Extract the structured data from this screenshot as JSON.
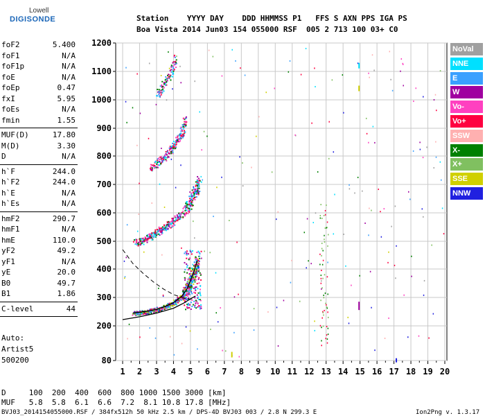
{
  "logo": {
    "top": "Lowell",
    "main": "DIGISONDE"
  },
  "header": {
    "line1": "Station    YYYY DAY    DDD HHMMSS P1   FFS S AXN PPS IGA PS",
    "line2": "Boa Vista 2014 Jun03 154 055000 RSF  005 2 713 100 03+ C0"
  },
  "params": [
    {
      "name": "foF2",
      "value": "5.400"
    },
    {
      "name": "foF1",
      "value": "N/A"
    },
    {
      "name": "foF1p",
      "value": "N/A"
    },
    {
      "name": "foE",
      "value": "N/A"
    },
    {
      "name": "foEp",
      "value": "0.47"
    },
    {
      "name": "fxI",
      "value": "5.95"
    },
    {
      "name": "foEs",
      "value": "N/A"
    },
    {
      "name": "fmin",
      "value": "1.55"
    },
    {
      "name": "MUF(D)",
      "value": "17.80"
    },
    {
      "name": "M(D)",
      "value": "3.30"
    },
    {
      "name": "D",
      "value": "N/A"
    },
    {
      "name": "h`F",
      "value": "244.0"
    },
    {
      "name": "h`F2",
      "value": "244.0"
    },
    {
      "name": "h`E",
      "value": "N/A"
    },
    {
      "name": "h`Es",
      "value": "N/A"
    },
    {
      "name": "hmF2",
      "value": "290.7"
    },
    {
      "name": "hmF1",
      "value": "N/A"
    },
    {
      "name": "hmE",
      "value": "110.0"
    },
    {
      "name": "yF2",
      "value": "49.2"
    },
    {
      "name": "yF1",
      "value": "N/A"
    },
    {
      "name": "yE",
      "value": "20.0"
    },
    {
      "name": "B0",
      "value": "49.7"
    },
    {
      "name": "B1",
      "value": "1.86"
    },
    {
      "name": "C-level",
      "value": "44"
    }
  ],
  "side_notes": {
    "auto": "Auto:",
    "artist": "Artist5",
    "version": "500200"
  },
  "legend": [
    {
      "label": "NoVal",
      "color": "#a0a0a0"
    },
    {
      "label": "NNE",
      "color": "#00e0ff"
    },
    {
      "label": "E",
      "color": "#3aa0ff"
    },
    {
      "label": "W",
      "color": "#a000a0"
    },
    {
      "label": "Vo-",
      "color": "#ff40c0"
    },
    {
      "label": "Vo+",
      "color": "#ff0040"
    },
    {
      "label": "SSW",
      "color": "#ffb0b0"
    },
    {
      "label": "X-",
      "color": "#008000"
    },
    {
      "label": "X+",
      "color": "#80c060"
    },
    {
      "label": "SSE",
      "color": "#d0d000"
    },
    {
      "label": "NNW",
      "color": "#2020e0"
    }
  ],
  "bottom": {
    "d_row": "D     100  200  400  600  800 1000 1500 3000 [km]",
    "muf_row": "MUF   5.8  5.8  6.1  6.6  7.2  8.1 10.8 17.8 [MHz]",
    "footer_left": "BVJ03_2014154055000.RSF / 384fx512h 50 kHz 2.5 km / DPS-4D BVJ03 003 / 2.8 N 299.3 E",
    "footer_right": "Ion2Png v. 1.3.17"
  },
  "chart_data": {
    "type": "scatter",
    "x_ticks": [
      "1",
      "2",
      "3",
      "4",
      "5",
      "6",
      "7",
      "8",
      "9",
      "10",
      "11",
      "12",
      "13",
      "14",
      "15",
      "16",
      "17",
      "18",
      "19",
      "20"
    ],
    "y_ticks": [
      "80",
      "200",
      "300",
      "400",
      "500",
      "600",
      "700",
      "800",
      "900",
      "1000",
      "1100",
      "1200"
    ],
    "xlim": [
      1,
      20
    ],
    "ylim": [
      80,
      1200
    ],
    "y_scale": "quasi-log",
    "grid": true,
    "traces": [
      {
        "name": "F trace (1st hop)",
        "points": [
          [
            1.6,
            245
          ],
          [
            2.0,
            248
          ],
          [
            2.5,
            252
          ],
          [
            3.0,
            258
          ],
          [
            3.5,
            268
          ],
          [
            4.0,
            282
          ],
          [
            4.5,
            305
          ],
          [
            4.8,
            330
          ],
          [
            5.0,
            360
          ],
          [
            5.2,
            390
          ],
          [
            5.4,
            430
          ]
        ]
      },
      {
        "name": "F trace (2nd hop)",
        "points": [
          [
            1.7,
            495
          ],
          [
            2.2,
            505
          ],
          [
            2.7,
            520
          ],
          [
            3.2,
            540
          ],
          [
            3.7,
            560
          ],
          [
            4.2,
            585
          ],
          [
            4.7,
            615
          ],
          [
            5.0,
            640
          ],
          [
            5.3,
            680
          ],
          [
            5.5,
            720
          ]
        ]
      },
      {
        "name": "F trace (3rd hop)",
        "points": [
          [
            2.7,
            760
          ],
          [
            3.1,
            780
          ],
          [
            3.5,
            800
          ],
          [
            3.9,
            830
          ],
          [
            4.2,
            860
          ],
          [
            4.5,
            890
          ],
          [
            4.7,
            930
          ]
        ]
      },
      {
        "name": "F trace (4th hop)",
        "points": [
          [
            3.0,
            1020
          ],
          [
            3.3,
            1045
          ],
          [
            3.6,
            1070
          ],
          [
            3.9,
            1110
          ],
          [
            4.1,
            1150
          ]
        ]
      }
    ],
    "profile_solid": [
      [
        1.0,
        222
      ],
      [
        2.0,
        232
      ],
      [
        3.0,
        245
      ],
      [
        4.0,
        262
      ],
      [
        4.6,
        280
      ],
      [
        5.0,
        295
      ],
      [
        5.3,
        305
      ]
    ],
    "profile_dashed": [
      [
        1.0,
        470
      ],
      [
        1.6,
        420
      ],
      [
        2.2,
        385
      ],
      [
        2.8,
        355
      ],
      [
        3.4,
        330
      ],
      [
        4.0,
        310
      ],
      [
        4.6,
        298
      ],
      [
        5.2,
        292
      ]
    ]
  }
}
